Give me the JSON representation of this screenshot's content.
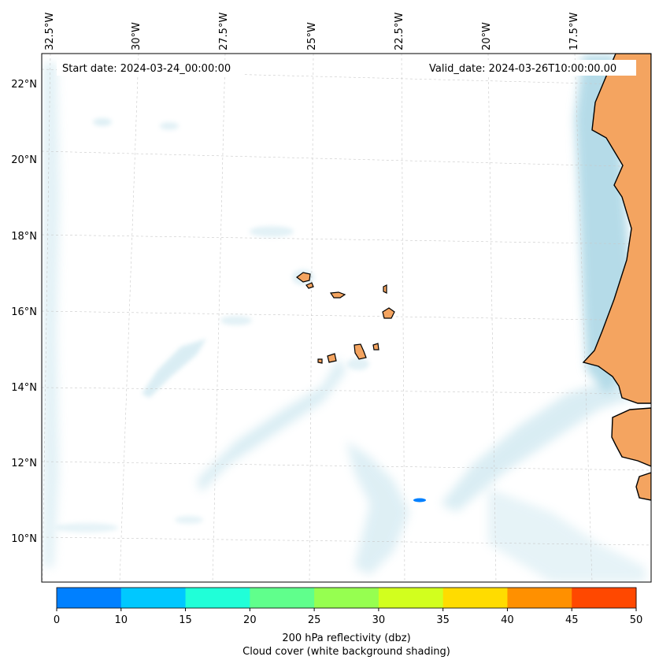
{
  "map": {
    "start_label": "Start date: 2024-03-24_00:00:00",
    "valid_label": "Valid_date: 2024-03-26T10:00:00.00",
    "longitude_labels": [
      "32.5°W",
      "30°W",
      "27.5°W",
      "25°W",
      "22.5°W",
      "20°W",
      "17.5°W"
    ],
    "latitude_labels": [
      "22°N",
      "20°N",
      "18°N",
      "16°N",
      "14°N",
      "12°N",
      "10°N"
    ],
    "ocean_color": "#ffffff",
    "land_color": "#f4a460",
    "cloud_color": "#add8e6",
    "coast_color": "#000000"
  },
  "colorbar": {
    "ticks": [
      "0",
      "10",
      "15",
      "20",
      "25",
      "30",
      "35",
      "40",
      "45",
      "50"
    ],
    "colors": [
      "#0080ff",
      "#00c8ff",
      "#20ffd8",
      "#60ff8c",
      "#96ff50",
      "#d2ff1e",
      "#ffdc00",
      "#ff9000",
      "#ff4800"
    ],
    "label_line1": "200 hPa reflectivity (dbz)",
    "label_line2": "Cloud cover (white background shading)"
  }
}
